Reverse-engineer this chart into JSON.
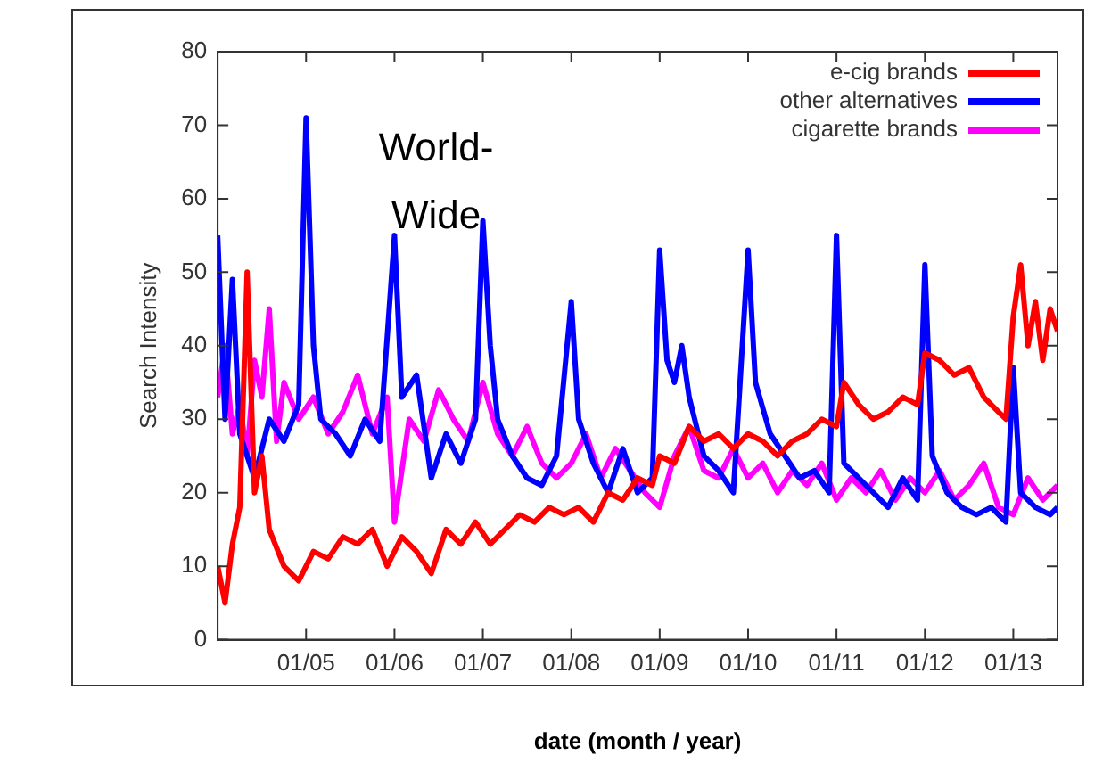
{
  "chart_data": {
    "type": "line",
    "xlabel": "date (month / year)",
    "ylabel": "Search Intensity",
    "annotations": [
      "World-Wide"
    ],
    "xlim": [
      "2004-01",
      "2013-07"
    ],
    "xticks": [
      {
        "value": "2005-01",
        "label": "01/05"
      },
      {
        "value": "2006-01",
        "label": "01/06"
      },
      {
        "value": "2007-01",
        "label": "01/07"
      },
      {
        "value": "2008-01",
        "label": "01/08"
      },
      {
        "value": "2009-01",
        "label": "01/09"
      },
      {
        "value": "2010-01",
        "label": "01/10"
      },
      {
        "value": "2011-01",
        "label": "01/11"
      },
      {
        "value": "2012-01",
        "label": "01/12"
      },
      {
        "value": "2013-01",
        "label": "01/13"
      }
    ],
    "ylim": [
      0,
      80
    ],
    "yticks": [
      0,
      10,
      20,
      30,
      40,
      50,
      60,
      70,
      80
    ],
    "grid": false,
    "legend": "top right",
    "marker": "none",
    "line_style": "solid",
    "series": [
      {
        "name": "e-cig brands",
        "color": "#ff0000",
        "x": [
          "2004-01",
          "2004-02",
          "2004-03",
          "2004-04",
          "2004-05",
          "2004-06",
          "2004-07",
          "2004-08",
          "2004-10",
          "2004-12",
          "2005-02",
          "2005-04",
          "2005-06",
          "2005-08",
          "2005-10",
          "2005-12",
          "2006-02",
          "2006-04",
          "2006-06",
          "2006-08",
          "2006-10",
          "2006-12",
          "2007-02",
          "2007-04",
          "2007-06",
          "2007-08",
          "2007-10",
          "2007-12",
          "2008-02",
          "2008-04",
          "2008-06",
          "2008-08",
          "2008-10",
          "2008-12",
          "2009-01",
          "2009-03",
          "2009-05",
          "2009-07",
          "2009-09",
          "2009-11",
          "2010-01",
          "2010-03",
          "2010-05",
          "2010-07",
          "2010-09",
          "2010-11",
          "2011-01",
          "2011-02",
          "2011-04",
          "2011-06",
          "2011-08",
          "2011-10",
          "2011-12",
          "2012-01",
          "2012-03",
          "2012-05",
          "2012-07",
          "2012-09",
          "2012-11",
          "2012-12",
          "2013-01",
          "2013-02",
          "2013-03",
          "2013-04",
          "2013-05",
          "2013-06",
          "2013-07"
        ],
        "values": [
          10,
          5,
          13,
          18,
          50,
          20,
          25,
          15,
          10,
          8,
          12,
          11,
          14,
          13,
          15,
          10,
          14,
          12,
          9,
          15,
          13,
          16,
          13,
          15,
          17,
          16,
          18,
          17,
          18,
          16,
          20,
          19,
          22,
          21,
          25,
          24,
          29,
          27,
          28,
          26,
          28,
          27,
          25,
          27,
          28,
          30,
          29,
          35,
          32,
          30,
          31,
          33,
          32,
          39,
          38,
          36,
          37,
          33,
          31,
          30,
          44,
          51,
          40,
          46,
          38,
          45,
          42
        ]
      },
      {
        "name": "other alternatives",
        "color": "#0000ff",
        "x": [
          "2004-01",
          "2004-02",
          "2004-03",
          "2004-04",
          "2004-06",
          "2004-08",
          "2004-10",
          "2004-12",
          "2005-01",
          "2005-02",
          "2005-03",
          "2005-05",
          "2005-07",
          "2005-09",
          "2005-11",
          "2006-01",
          "2006-02",
          "2006-04",
          "2006-06",
          "2006-08",
          "2006-10",
          "2006-12",
          "2007-01",
          "2007-02",
          "2007-03",
          "2007-05",
          "2007-07",
          "2007-09",
          "2007-11",
          "2008-01",
          "2008-02",
          "2008-04",
          "2008-06",
          "2008-08",
          "2008-10",
          "2008-12",
          "2009-01",
          "2009-02",
          "2009-03",
          "2009-04",
          "2009-05",
          "2009-07",
          "2009-09",
          "2009-11",
          "2010-01",
          "2010-02",
          "2010-04",
          "2010-06",
          "2010-08",
          "2010-10",
          "2010-12",
          "2011-01",
          "2011-02",
          "2011-04",
          "2011-06",
          "2011-08",
          "2011-10",
          "2011-12",
          "2012-01",
          "2012-02",
          "2012-04",
          "2012-06",
          "2012-08",
          "2012-10",
          "2012-12",
          "2013-01",
          "2013-02",
          "2013-04",
          "2013-06",
          "2013-07"
        ],
        "values": [
          55,
          30,
          49,
          28,
          22,
          30,
          27,
          32,
          71,
          40,
          30,
          28,
          25,
          30,
          27,
          55,
          33,
          36,
          22,
          28,
          24,
          30,
          57,
          40,
          30,
          25,
          22,
          21,
          25,
          46,
          30,
          24,
          20,
          26,
          20,
          22,
          53,
          38,
          35,
          40,
          33,
          25,
          23,
          20,
          53,
          35,
          28,
          25,
          22,
          23,
          20,
          55,
          24,
          22,
          20,
          18,
          22,
          19,
          51,
          25,
          20,
          18,
          17,
          18,
          16,
          37,
          20,
          18,
          17,
          18
        ]
      },
      {
        "name": "cigarette brands",
        "color": "#ff00ff",
        "x": [
          "2004-01",
          "2004-02",
          "2004-03",
          "2004-04",
          "2004-05",
          "2004-06",
          "2004-07",
          "2004-08",
          "2004-09",
          "2004-10",
          "2004-12",
          "2005-02",
          "2005-04",
          "2005-06",
          "2005-08",
          "2005-10",
          "2005-12",
          "2006-01",
          "2006-03",
          "2006-05",
          "2006-07",
          "2006-09",
          "2006-11",
          "2007-01",
          "2007-03",
          "2007-05",
          "2007-07",
          "2007-09",
          "2007-11",
          "2008-01",
          "2008-03",
          "2008-05",
          "2008-07",
          "2008-09",
          "2008-11",
          "2009-01",
          "2009-03",
          "2009-05",
          "2009-07",
          "2009-09",
          "2009-11",
          "2010-01",
          "2010-03",
          "2010-05",
          "2010-07",
          "2010-09",
          "2010-11",
          "2011-01",
          "2011-03",
          "2011-05",
          "2011-07",
          "2011-09",
          "2011-11",
          "2012-01",
          "2012-03",
          "2012-05",
          "2012-07",
          "2012-09",
          "2012-11",
          "2013-01",
          "2013-03",
          "2013-05",
          "2013-07"
        ],
        "values": [
          33,
          40,
          28,
          32,
          25,
          38,
          33,
          45,
          27,
          35,
          30,
          33,
          28,
          31,
          36,
          28,
          33,
          16,
          30,
          27,
          34,
          30,
          27,
          35,
          28,
          25,
          29,
          24,
          22,
          24,
          28,
          22,
          26,
          23,
          20,
          18,
          25,
          29,
          23,
          22,
          26,
          22,
          24,
          20,
          23,
          21,
          24,
          19,
          22,
          20,
          23,
          19,
          22,
          20,
          23,
          19,
          21,
          24,
          18,
          17,
          22,
          19,
          21
        ]
      }
    ]
  }
}
